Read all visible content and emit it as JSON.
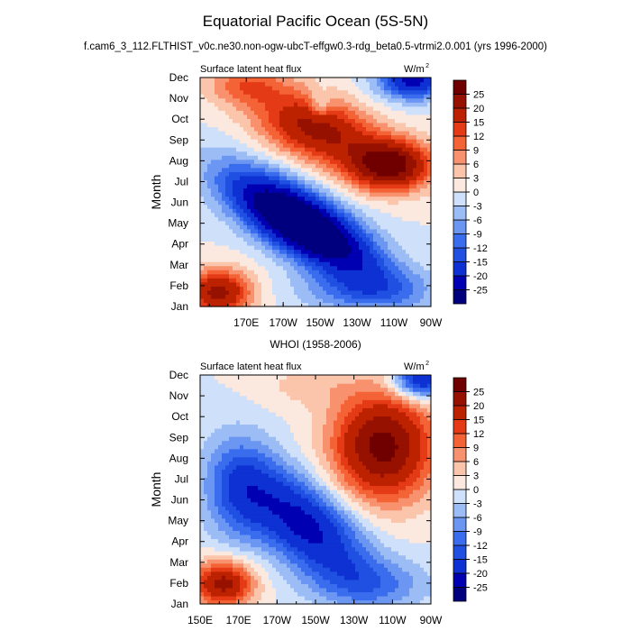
{
  "figure": {
    "title": "Equatorial Pacific Ocean (5S-5N)",
    "subtitle": "f.cam6_3_112.FLTHIST_v0c.ne30.non-ogw-ubcT-effgw0.3-rdg_beta0.5-vtrmi2.0.001 (yrs 1996-2000)"
  },
  "chart_data": [
    {
      "type": "heatmap",
      "panel_title": "",
      "left_label": "Surface latent heat flux",
      "right_label": "W/m",
      "right_label_sup": "2",
      "ylabel": "Month",
      "xlabel": "",
      "x_range": [
        145,
        270
      ],
      "x_ticks": [
        {
          "v": 170,
          "label": "170E"
        },
        {
          "v": 190,
          "label": "170W"
        },
        {
          "v": 210,
          "label": "150W"
        },
        {
          "v": 230,
          "label": "130W"
        },
        {
          "v": 250,
          "label": "110W"
        },
        {
          "v": 270,
          "label": "90W"
        }
      ],
      "y_ticks": [
        "Jan",
        "Feb",
        "Mar",
        "Apr",
        "May",
        "Jun",
        "Jul",
        "Aug",
        "Sep",
        "Oct",
        "Nov",
        "Dec"
      ],
      "colorbar_levels": [
        -25,
        -20,
        -15,
        -12,
        -9,
        -6,
        -3,
        0,
        3,
        6,
        9,
        12,
        15,
        20,
        25
      ],
      "colors": [
        "#00007f",
        "#0000b2",
        "#0d31d2",
        "#2050e2",
        "#3a6ded",
        "#6b96f2",
        "#9cbcf6",
        "#cfe0fa",
        "#fbe8de",
        "#fbc5ac",
        "#f8916d",
        "#f46336",
        "#e43a16",
        "#bd2200",
        "#961100",
        "#700000"
      ],
      "features": [
        {
          "cx": 200,
          "cy": 4.0,
          "sx": 38,
          "sy": 1.6,
          "a": -40,
          "tilt": -0.045
        },
        {
          "cx": 260,
          "cy": 10.9,
          "sx": 18,
          "sy": 0.9,
          "a": -22,
          "tilt": 0
        },
        {
          "cx": 208,
          "cy": 8.6,
          "sx": 32,
          "sy": 1.6,
          "a": 22,
          "tilt": -0.02
        },
        {
          "cx": 248,
          "cy": 6.8,
          "sx": 22,
          "sy": 1.2,
          "a": 28,
          "tilt": 0
        },
        {
          "cx": 155,
          "cy": 0.7,
          "sx": 18,
          "sy": 1.1,
          "a": 22,
          "tilt": 0
        },
        {
          "cx": 170,
          "cy": 10.7,
          "sx": 22,
          "sy": 1.0,
          "a": 10,
          "tilt": 0
        },
        {
          "cx": 235,
          "cy": 0.8,
          "sx": 35,
          "sy": 1.1,
          "a": -10,
          "tilt": 0
        },
        {
          "cx": 210,
          "cy": 9.7,
          "sx": 6,
          "sy": 0.7,
          "a": -8,
          "tilt": 0
        }
      ]
    },
    {
      "type": "heatmap",
      "panel_title": "WHOI (1958-2006)",
      "left_label": "Surface latent heat flux",
      "right_label": "W/m",
      "right_label_sup": "2",
      "ylabel": "Month",
      "xlabel": "",
      "x_range": [
        150,
        270
      ],
      "x_ticks": [
        {
          "v": 150,
          "label": "150E"
        },
        {
          "v": 170,
          "label": "170E"
        },
        {
          "v": 190,
          "label": "170W"
        },
        {
          "v": 210,
          "label": "150W"
        },
        {
          "v": 230,
          "label": "130W"
        },
        {
          "v": 250,
          "label": "110W"
        },
        {
          "v": 270,
          "label": "90W"
        }
      ],
      "y_ticks": [
        "Jan",
        "Feb",
        "Mar",
        "Apr",
        "May",
        "Jun",
        "Jul",
        "Aug",
        "Sep",
        "Oct",
        "Nov",
        "Dec"
      ],
      "colorbar_levels": [
        -25,
        -20,
        -15,
        -12,
        -9,
        -6,
        -3,
        0,
        3,
        6,
        9,
        12,
        15,
        20,
        25
      ],
      "colors": [
        "#00007f",
        "#0000b2",
        "#0d31d2",
        "#2050e2",
        "#3a6ded",
        "#6b96f2",
        "#9cbcf6",
        "#cfe0fa",
        "#fbe8de",
        "#fbc5ac",
        "#f8916d",
        "#f46336",
        "#e43a16",
        "#bd2200",
        "#961100",
        "#700000"
      ],
      "features": [
        {
          "cx": 245,
          "cy": 7.6,
          "sx": 26,
          "sy": 2.6,
          "a": 27,
          "tilt": 0
        },
        {
          "cx": 205,
          "cy": 3.8,
          "sx": 32,
          "sy": 2.2,
          "a": -22,
          "tilt": -0.05
        },
        {
          "cx": 170,
          "cy": 5.5,
          "sx": 18,
          "sy": 2.5,
          "a": -12,
          "tilt": 0
        },
        {
          "cx": 162,
          "cy": 1.0,
          "sx": 16,
          "sy": 1.1,
          "a": 22,
          "tilt": 0
        },
        {
          "cx": 265,
          "cy": 10.8,
          "sx": 14,
          "sy": 0.9,
          "a": -22,
          "tilt": 0
        },
        {
          "cx": 205,
          "cy": 10.5,
          "sx": 25,
          "sy": 1.0,
          "a": 4,
          "tilt": 0
        },
        {
          "cx": 240,
          "cy": 1.0,
          "sx": 30,
          "sy": 1.2,
          "a": -8,
          "tilt": 0
        }
      ]
    }
  ]
}
